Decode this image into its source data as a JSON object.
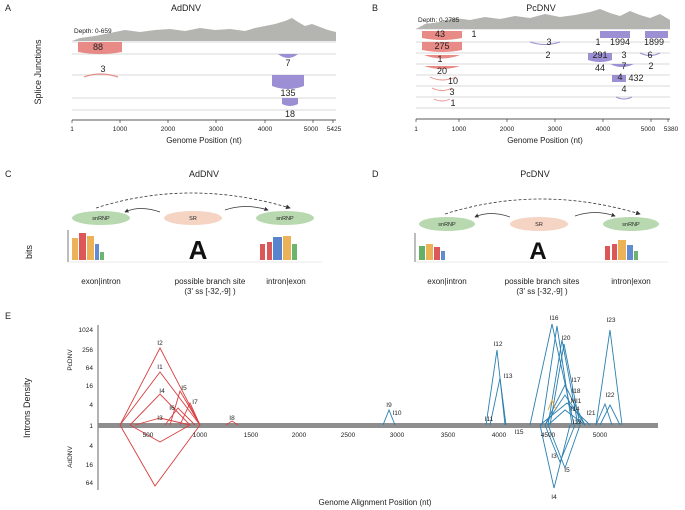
{
  "panels": {
    "a": "A",
    "b": "B",
    "c": "C",
    "d": "D",
    "e": "E"
  },
  "panel_a": {
    "title": "AdDNV",
    "depth_label": "Depth: 0-659",
    "y_label": "Splice Junctions",
    "x_label": "Genome Position (nt)",
    "x_ticks": [
      "1",
      "1000",
      "2000",
      "3000",
      "4000",
      "5000",
      "5425"
    ],
    "junction_counts": [
      "88",
      "7",
      "3",
      "135",
      "18"
    ]
  },
  "panel_b": {
    "title": "PcDNV",
    "depth_label": "Depth: 0-2785",
    "x_label": "Genome Position (nt)",
    "x_ticks": [
      "1",
      "1000",
      "2000",
      "3000",
      "4000",
      "5000",
      "5380"
    ],
    "junction_counts": [
      "43",
      "1",
      "275",
      "3",
      "1",
      "1994",
      "1899",
      "1",
      "2",
      "291",
      "3",
      "6",
      "20",
      "44",
      "7",
      "2",
      "10",
      "4",
      "432",
      "3",
      "4",
      "1"
    ]
  },
  "panel_c": {
    "title": "AdDNV",
    "bits_label": "bits",
    "snrnp_left": "snRNP",
    "sr": "SR",
    "snrnp_right": "snRNP",
    "logo_branch": "A",
    "label_left": "exon|intron",
    "label_mid_1": "possible branch site",
    "label_mid_2": "(3' ss [-32,-9] )",
    "label_right": "intron|exon"
  },
  "panel_d": {
    "title": "PcDNV",
    "snrnp_left": "snRNP",
    "sr": "SR",
    "snrnp_right": "snRNP",
    "logo_branch": "A",
    "label_left": "exon|intron",
    "label_mid_1": "possible branch sites",
    "label_mid_2": "(3' ss [-32,-9] )",
    "label_right": "intron|exon"
  },
  "panel_e": {
    "y_label": "Introns Density",
    "x_label": "Genome Alignment Position (nt)",
    "series_top_label": "PcDNV",
    "series_bottom_label": "AdDNV",
    "x_ticks": [
      "500",
      "1000",
      "1500",
      "2000",
      "2500",
      "3000",
      "3500",
      "4000",
      "4500",
      "5000"
    ],
    "y_ticks_top": [
      "1024",
      "256",
      "64",
      "16",
      "4",
      "1"
    ],
    "y_ticks_bottom": [
      "4",
      "16",
      "64"
    ],
    "introns_red": [
      "I2",
      "I1",
      "I4",
      "I5",
      "I6",
      "I3",
      "I7",
      "I8"
    ],
    "introns_blue": [
      "I9",
      "I10",
      "I11",
      "I12",
      "I13",
      "I16",
      "I20",
      "I23",
      "I17",
      "I18",
      "MI1",
      "I14",
      "I19",
      "I15",
      "I21",
      "I22",
      "I3",
      "I5",
      "I4"
    ],
    "colors": {
      "red": "#d94040",
      "blue": "#2a7fb0"
    }
  }
}
